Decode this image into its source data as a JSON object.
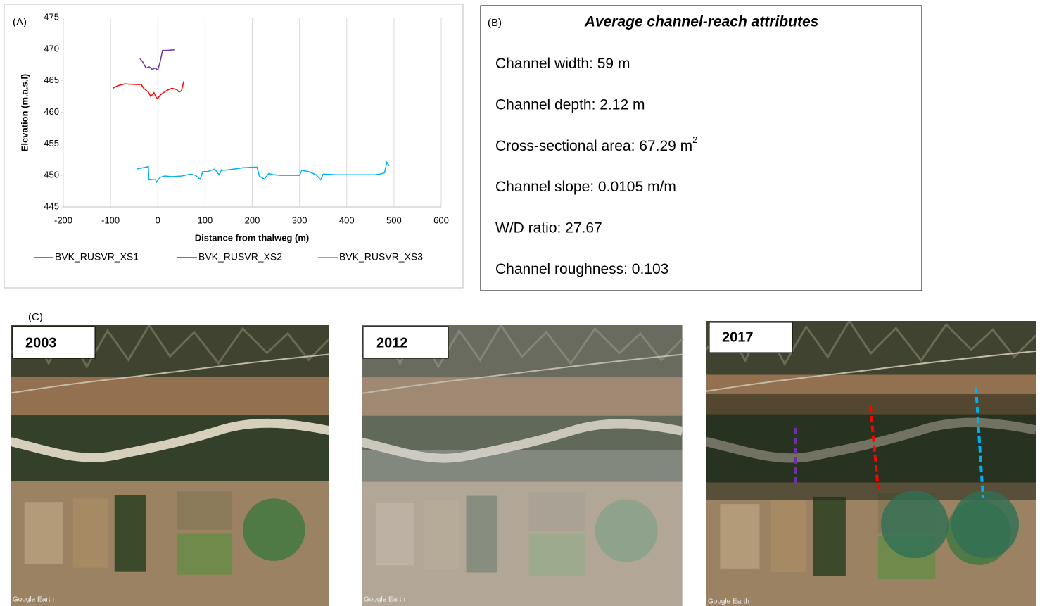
{
  "chart_data": {
    "type": "line",
    "panel_label": "(A)",
    "x_label": "Distance from thalweg (m)",
    "y_label": "Elevation (m.a.s.l)",
    "xlim": [
      -200,
      600
    ],
    "xticks": [
      -200,
      -100,
      0,
      100,
      200,
      300,
      400,
      500,
      600
    ],
    "ylim": [
      445,
      475
    ],
    "yticks": [
      445,
      450,
      455,
      460,
      465,
      470,
      475
    ],
    "grid": "x",
    "legend": "bottom",
    "series": [
      {
        "name": "BVK_RUSVR_XS1",
        "color": "#7030a0",
        "x": [
          -38,
          -32,
          -25,
          -18,
          -12,
          -5,
          0,
          5,
          10,
          20,
          35
        ],
        "values": [
          468.5,
          468,
          467,
          467.2,
          466.8,
          467,
          466.7,
          468,
          469.8,
          469.8,
          469.9
        ]
      },
      {
        "name": "BVK_RUSVR_XS2",
        "color": "#ff0000",
        "x": [
          -95,
          -85,
          -70,
          -50,
          -35,
          -30,
          -20,
          -15,
          -8,
          -3,
          0,
          5,
          10,
          20,
          30,
          40,
          45,
          50,
          55
        ],
        "values": [
          463.8,
          464.2,
          464.5,
          464.4,
          464.4,
          463.8,
          463.2,
          462.5,
          463.1,
          462.3,
          462.2,
          462.7,
          463,
          463.5,
          463.8,
          463.6,
          463.2,
          463.4,
          464.9
        ]
      },
      {
        "name": "BVK_RUSVR_XS3",
        "color": "#00b0f0",
        "x": [
          -45,
          -20,
          -19,
          -5,
          -3,
          5,
          15,
          30,
          50,
          70,
          80,
          90,
          95,
          105,
          120,
          130,
          135,
          140,
          160,
          180,
          200,
          210,
          215,
          225,
          235,
          245,
          260,
          280,
          300,
          305,
          320,
          335,
          345,
          350,
          380,
          420,
          460,
          470,
          480,
          485,
          490
        ],
        "values": [
          451,
          451.4,
          449.3,
          449.4,
          448.9,
          449.7,
          449.9,
          449.8,
          449.9,
          450.2,
          450,
          449.4,
          450.6,
          450.6,
          451,
          450.1,
          450.9,
          450.8,
          451,
          451.2,
          451.3,
          451.3,
          449.9,
          449.4,
          450.3,
          450.1,
          450,
          450,
          450,
          450.8,
          450.6,
          450.1,
          449.3,
          450.2,
          450.1,
          450.1,
          450.1,
          450.2,
          450.4,
          452.1,
          451.5
        ]
      }
    ]
  },
  "panel_b": {
    "label": "(B)",
    "title": "Average channel-reach attributes",
    "items": [
      {
        "text": "Channel width: 59 m"
      },
      {
        "text": "Channel depth: 2.12 m"
      },
      {
        "text": "Cross-sectional area:  67.29 m",
        "sup": "2"
      },
      {
        "text": "Channel slope: 0.0105 m/m"
      },
      {
        "text": "W/D ratio: 27.67"
      },
      {
        "text": "Channel roughness:  0.103"
      }
    ]
  },
  "panel_c": {
    "label": "(C)",
    "images": [
      {
        "year": "2003",
        "credit": "Google Earth"
      },
      {
        "year": "2012",
        "credit": "Google Earth"
      },
      {
        "year": "2017",
        "credit": "Google Earth"
      }
    ]
  }
}
